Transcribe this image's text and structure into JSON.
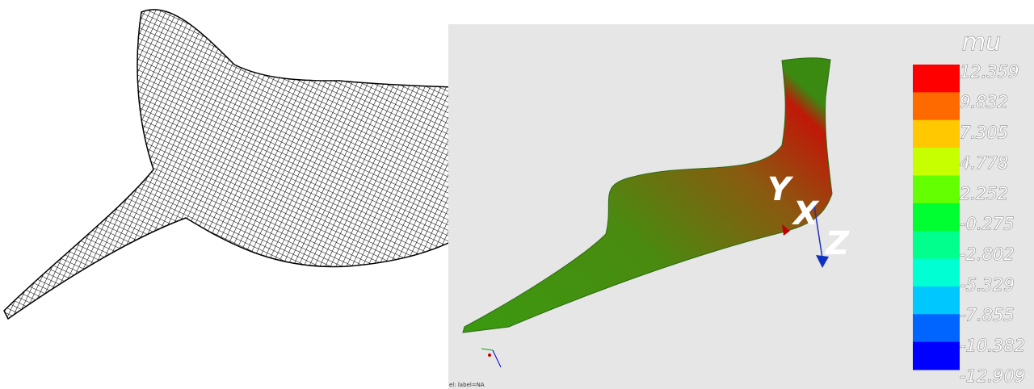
{
  "legend": {
    "title": "mu",
    "labels": [
      "12.359",
      "9.832",
      "7.305",
      "4.778",
      "2.252",
      "-0.275",
      "-2.802",
      "-5.329",
      "-7.855",
      "-10.382",
      "-12.909"
    ],
    "colors": [
      "#ff0000",
      "#ff6a00",
      "#ffc800",
      "#c8ff00",
      "#64ff00",
      "#00ff30",
      "#00ff8c",
      "#00ffd2",
      "#00c8ff",
      "#0064ff",
      "#0000ff"
    ]
  },
  "axes": {
    "y": "Y",
    "x": "X",
    "z": "Z"
  },
  "footer": "el: label=NA"
}
